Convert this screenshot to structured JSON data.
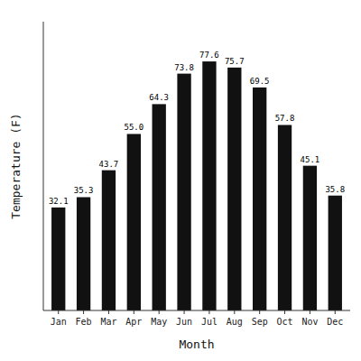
{
  "chart_data": {
    "type": "bar",
    "categories": [
      "Jan",
      "Feb",
      "Mar",
      "Apr",
      "May",
      "Jun",
      "Jul",
      "Aug",
      "Sep",
      "Oct",
      "Nov",
      "Dec"
    ],
    "values": [
      32.1,
      35.3,
      43.7,
      55.0,
      64.3,
      73.8,
      77.6,
      75.7,
      69.5,
      57.8,
      45.1,
      35.8
    ],
    "value_labels": [
      "32.1",
      "35.3",
      "43.7",
      "55.0",
      "64.3",
      "73.8",
      "77.6",
      "75.7",
      "69.5",
      "57.8",
      "45.1",
      "35.8"
    ],
    "color": "#111111",
    "xlabel": "Month",
    "ylabel": "Temperature (F)",
    "ylim": [
      0,
      90
    ],
    "data_labels": true,
    "tick_labels": "x",
    "grid": false
  }
}
